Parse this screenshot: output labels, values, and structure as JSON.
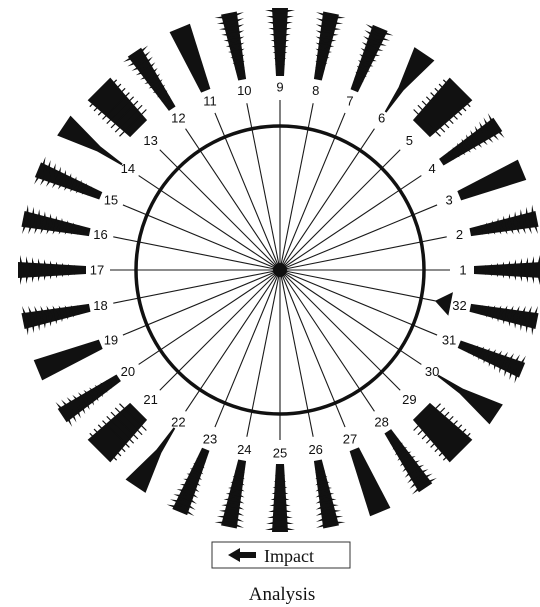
{
  "positions": [
    "1",
    "2",
    "3",
    "4",
    "5",
    "6",
    "7",
    "8",
    "9",
    "10",
    "11",
    "12",
    "13",
    "14",
    "15",
    "16",
    "17",
    "18",
    "19",
    "20",
    "21",
    "22",
    "23",
    "24",
    "25",
    "26",
    "27",
    "28",
    "29",
    "30",
    "31",
    "32"
  ],
  "impact_position": "32",
  "legend": {
    "label": "Impact"
  },
  "caption": "Analysis",
  "colors": {
    "ink": "#111111",
    "background": "#ffffff"
  }
}
